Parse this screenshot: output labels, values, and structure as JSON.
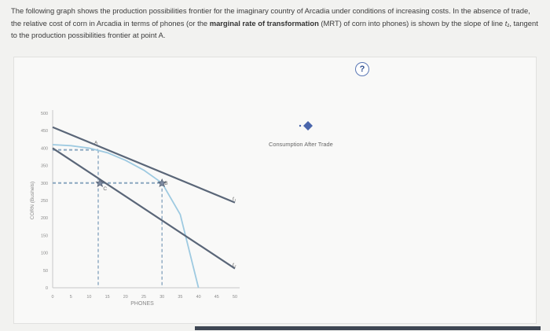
{
  "prompt": {
    "part1": "The following graph shows the production possibilities frontier for the imaginary country of Arcadia under conditions of increasing costs. In the absence of trade, the relative cost of corn in Arcadia in terms of phones (or the ",
    "bold": "marginal rate of transformation",
    "part2": " (MRT) of corn into phones) is shown by the slope of line ",
    "line_name": "t₁",
    "part3": ", tangent to the production possibilities frontier at point A."
  },
  "help_button": "?",
  "legend": {
    "label": "Consumption After Trade",
    "color": "#4a66ab"
  },
  "chart_data": {
    "type": "line",
    "xlabel": "PHONES",
    "ylabel": "CORN (Bushels)",
    "xticks": [
      "0",
      "5",
      "10",
      "15",
      "20",
      "25",
      "30",
      "35",
      "40",
      "45",
      "50"
    ],
    "yticks": [
      "0",
      "50",
      "100",
      "150",
      "200",
      "250",
      "300",
      "350",
      "400",
      "450",
      "500"
    ],
    "xlim": [
      0,
      50
    ],
    "ylim": [
      0,
      500
    ],
    "ppf": {
      "color": "#9ecae1",
      "x": [
        0,
        5,
        10,
        15,
        20,
        25,
        30,
        35,
        40
      ],
      "y": [
        410,
        407,
        400,
        387,
        365,
        337,
        300,
        210,
        0
      ]
    },
    "lines": [
      {
        "name": "t₁",
        "x": [
          0,
          50
        ],
        "y": [
          460,
          244
        ],
        "color": "#5a6678"
      },
      {
        "name": "t₂",
        "x": [
          0,
          50
        ],
        "y": [
          400,
          55
        ],
        "color": "#5a6678"
      }
    ],
    "points": [
      {
        "name": "A",
        "x": 12.5,
        "y": 395
      },
      {
        "name": "B",
        "x": 30,
        "y": 300
      },
      {
        "name": "C",
        "x": 13,
        "y": 300
      }
    ],
    "guides_color": "#8aa7c0"
  }
}
